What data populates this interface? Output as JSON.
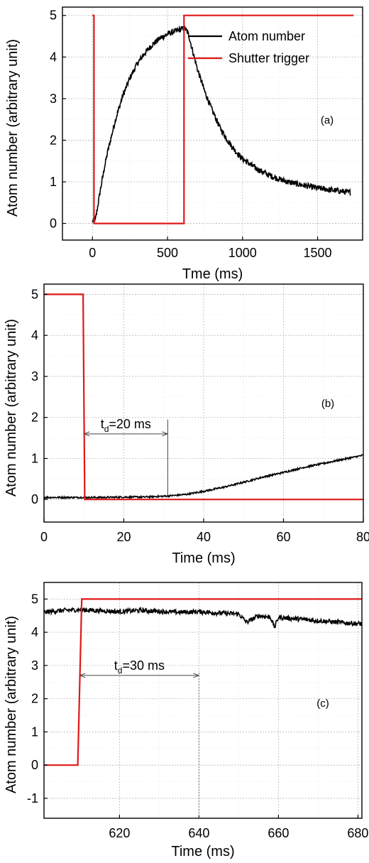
{
  "colors": {
    "atom": "#000000",
    "shutter": "#e01818",
    "grid": "#b8b8b8",
    "arrow": "#444444"
  },
  "chart_data": [
    {
      "type": "line",
      "panel_label": "(a)",
      "xlabel": "Tme (ms)",
      "ylabel": "Atom number (arbitrary unit)",
      "xlim": [
        -200,
        1800
      ],
      "ylim": [
        -0.4,
        5.2
      ],
      "xticks": [
        0,
        500,
        1000,
        1500
      ],
      "yticks": [
        0,
        1,
        2,
        3,
        4,
        5
      ],
      "grid": true,
      "legend_position": "top-right",
      "series": [
        {
          "name": "Atom number",
          "color": "#000000",
          "x": [
            0,
            10,
            20,
            30,
            50,
            80,
            100,
            150,
            200,
            250,
            300,
            350,
            400,
            450,
            500,
            550,
            600,
            615,
            640,
            660,
            700,
            750,
            800,
            850,
            900,
            950,
            1000,
            1100,
            1200,
            1300,
            1400,
            1500,
            1600,
            1700,
            1720
          ],
          "y": [
            0.05,
            0.07,
            0.1,
            0.3,
            0.75,
            1.35,
            1.7,
            2.45,
            3.05,
            3.5,
            3.85,
            4.1,
            4.3,
            4.45,
            4.55,
            4.62,
            4.68,
            4.7,
            4.55,
            4.25,
            3.7,
            3.15,
            2.7,
            2.3,
            2.0,
            1.75,
            1.55,
            1.3,
            1.12,
            1.0,
            0.92,
            0.85,
            0.8,
            0.75,
            0.75
          ],
          "noise": 0.07
        },
        {
          "name": "Shutter trigger",
          "color": "#e01818",
          "x": [
            0,
            10,
            10,
            610,
            610,
            1740
          ],
          "y": [
            5,
            5,
            0,
            0,
            5,
            5
          ]
        }
      ]
    },
    {
      "type": "line",
      "panel_label": "(b)",
      "xlabel": "Time (ms)",
      "ylabel": "Atom number (arbitrary unit)",
      "xlim": [
        0,
        80
      ],
      "ylim": [
        -0.55,
        5.25
      ],
      "xticks": [
        0,
        20,
        40,
        60,
        80
      ],
      "yticks": [
        0,
        1,
        2,
        3,
        4,
        5
      ],
      "grid": true,
      "annotation": {
        "text_main": "t",
        "text_sub": "d",
        "text_rest": "=20 ms",
        "x_start": 10,
        "x_end": 31,
        "y": 1.6
      },
      "series": [
        {
          "name": "",
          "color": "#000000",
          "x": [
            0,
            5,
            10,
            15,
            20,
            25,
            30,
            33,
            36,
            40,
            45,
            50,
            55,
            60,
            65,
            70,
            75,
            80
          ],
          "y": [
            0.05,
            0.05,
            0.05,
            0.05,
            0.06,
            0.06,
            0.08,
            0.1,
            0.13,
            0.2,
            0.3,
            0.42,
            0.55,
            0.66,
            0.78,
            0.88,
            0.98,
            1.08
          ],
          "noise": 0.02
        },
        {
          "name": "",
          "color": "#e01818",
          "x": [
            0,
            9.8,
            10.2,
            80
          ],
          "y": [
            5,
            5,
            0,
            0
          ]
        }
      ]
    },
    {
      "type": "line",
      "panel_label": "(c)",
      "xlabel": "Time (ms)",
      "ylabel": "Atom number (arbitrary unit)",
      "xlim": [
        601,
        681
      ],
      "ylim": [
        -1.6,
        5.5
      ],
      "xticks": [
        620,
        640,
        660,
        680
      ],
      "yticks": [
        -1,
        0,
        1,
        2,
        3,
        4,
        5
      ],
      "grid": true,
      "annotation": {
        "text_main": "t",
        "text_sub": "d",
        "text_rest": "=30 ms",
        "x_start": 610,
        "x_end": 640,
        "y": 2.7
      },
      "series": [
        {
          "name": "",
          "color": "#000000",
          "x": [
            601,
            605,
            610,
            615,
            620,
            625,
            630,
            635,
            640,
            645,
            650,
            652,
            655,
            658,
            659,
            660,
            665,
            670,
            675,
            681
          ],
          "y": [
            4.6,
            4.65,
            4.68,
            4.65,
            4.62,
            4.66,
            4.63,
            4.6,
            4.62,
            4.58,
            4.55,
            4.3,
            4.5,
            4.45,
            4.15,
            4.45,
            4.4,
            4.35,
            4.3,
            4.25
          ],
          "noise": 0.07
        },
        {
          "name": "",
          "color": "#e01818",
          "x": [
            601,
            609.5,
            610.5,
            681
          ],
          "y": [
            0,
            0,
            5,
            5
          ]
        }
      ]
    }
  ]
}
